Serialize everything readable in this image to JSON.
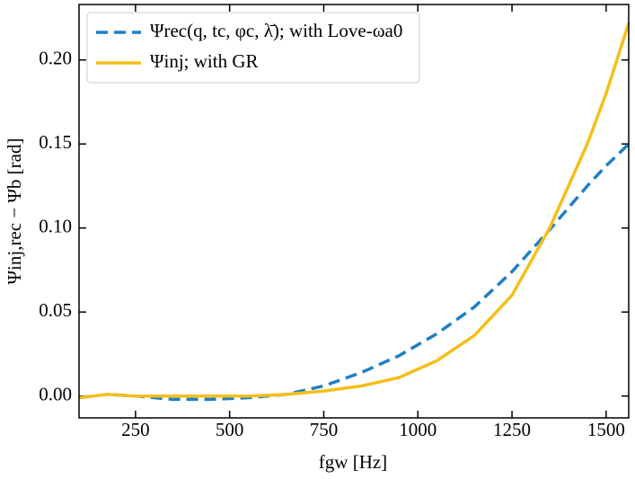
{
  "chart_data": {
    "type": "line",
    "xlabel": "fgw [Hz]",
    "ylabel": "Ψinj,rec − Ψb [rad]",
    "x": [
      100,
      175,
      250,
      350,
      450,
      550,
      650,
      750,
      850,
      950,
      1050,
      1150,
      1250,
      1350,
      1450,
      1500,
      1560
    ],
    "series": [
      {
        "name": "Ψrec(q, tc, φc, λ̄); with Love-ωa0",
        "color": "#1f7fc4",
        "dash": true,
        "values": [
          -0.001,
          0.001,
          0.0,
          -0.002,
          -0.002,
          -0.001,
          0.001,
          0.006,
          0.014,
          0.024,
          0.037,
          0.053,
          0.074,
          0.099,
          0.125,
          0.137,
          0.15
        ]
      },
      {
        "name": "Ψinj; with GR",
        "color": "#f5bf1a",
        "dash": false,
        "values": [
          -0.001,
          0.001,
          0.0,
          0.0,
          0.0,
          0.0,
          0.001,
          0.003,
          0.006,
          0.011,
          0.021,
          0.036,
          0.06,
          0.1,
          0.15,
          0.18,
          0.222
        ]
      }
    ],
    "xlim": [
      100,
      1560
    ],
    "ylim": [
      -0.013,
      0.233
    ],
    "xticks": [
      250,
      500,
      750,
      1000,
      1250,
      1500
    ],
    "yticks": [
      {
        "value": 0,
        "label": "0.00"
      },
      0.05,
      {
        "value": 0.1,
        "label": "0.10"
      },
      0.15,
      {
        "value": 0.2,
        "label": "0.20"
      }
    ],
    "legend": "upper-left"
  }
}
